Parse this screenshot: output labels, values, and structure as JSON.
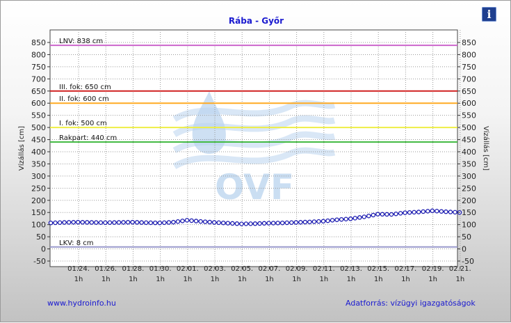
{
  "header": {
    "title": "Rába - Győr",
    "info_icon": "info-icon",
    "info_glyph": "i"
  },
  "footer": {
    "left_text": "www.hydroinfo.hu",
    "right_text": "Adatforrás: vízügyi igazgatóságok"
  },
  "watermark": {
    "text": "OVF",
    "color": "#b9d3ee"
  },
  "chart_data": {
    "type": "line",
    "title": "Rába - Győr",
    "ylabel": "Vízállás [cm]",
    "ylabel_right": "Vízállás [cm]",
    "ylim": [
      -50,
      850
    ],
    "yticks": [
      -50,
      0,
      50,
      100,
      150,
      200,
      250,
      300,
      350,
      400,
      450,
      500,
      550,
      600,
      650,
      700,
      750,
      800,
      850
    ],
    "xlim_days": [
      "01.22. 0h",
      "02.21. 1h"
    ],
    "xticks": [
      {
        "date": "01.24.",
        "time": "1h"
      },
      {
        "date": "01.26.",
        "time": "1h"
      },
      {
        "date": "01.28.",
        "time": "1h"
      },
      {
        "date": "01.30.",
        "time": "1h"
      },
      {
        "date": "02.01.",
        "time": "1h"
      },
      {
        "date": "02.03.",
        "time": "1h"
      },
      {
        "date": "02.05.",
        "time": "1h"
      },
      {
        "date": "02.07.",
        "time": "1h"
      },
      {
        "date": "02.09.",
        "time": "1h"
      },
      {
        "date": "02.11.",
        "time": "1h"
      },
      {
        "date": "02.13.",
        "time": "1h"
      },
      {
        "date": "02.15.",
        "time": "1h"
      },
      {
        "date": "02.17.",
        "time": "1h"
      },
      {
        "date": "02.19.",
        "time": "1h"
      },
      {
        "date": "02.21.",
        "time": "1h"
      }
    ],
    "grid": true,
    "reference_lines": [
      {
        "label": "LNV: 838 cm",
        "value": 838,
        "color": "#cc66cc"
      },
      {
        "label": "III. fok: 650 cm",
        "value": 650,
        "color": "#d02020"
      },
      {
        "label": "II. fok: 600 cm",
        "value": 600,
        "color": "#ffaa22"
      },
      {
        "label": "I. fok: 500 cm",
        "value": 500,
        "color": "#eeee44"
      },
      {
        "label": "Rakpart: 440 cm",
        "value": 440,
        "color": "#44bb44"
      },
      {
        "label": "LKV: 8 cm",
        "value": 8,
        "color": "#9999cc"
      }
    ],
    "series": [
      {
        "color": "#1a1ab0",
        "x": [
          "01.22.",
          "01.23.",
          "01.24.",
          "01.25.",
          "01.26.",
          "01.27.",
          "01.28.",
          "01.29.",
          "01.30.",
          "01.31.",
          "02.01.",
          "02.02.",
          "02.03.",
          "02.04.",
          "02.05.",
          "02.06.",
          "02.07.",
          "02.08.",
          "02.09.",
          "02.10.",
          "02.11.",
          "02.12.",
          "02.13.",
          "02.14.",
          "02.15.",
          "02.16.",
          "02.17.",
          "02.18.",
          "02.19.",
          "02.20.",
          "02.21."
        ],
        "values": [
          107,
          109,
          110,
          109,
          108,
          109,
          110,
          108,
          107,
          110,
          118,
          113,
          109,
          106,
          103,
          104,
          106,
          107,
          109,
          111,
          114,
          120,
          124,
          132,
          143,
          142,
          149,
          152,
          157,
          153,
          150
        ]
      }
    ]
  }
}
